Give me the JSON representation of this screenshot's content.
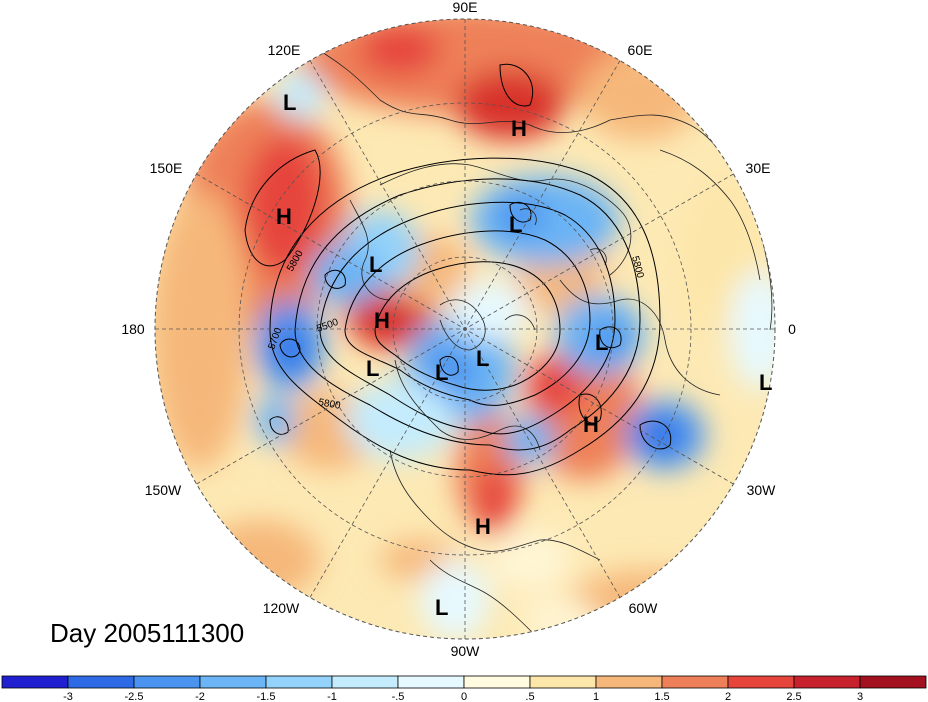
{
  "title": "Day 2005111300",
  "longitude_labels": [
    {
      "text": "90E"
    },
    {
      "text": "60E"
    },
    {
      "text": "30E"
    },
    {
      "text": "0"
    },
    {
      "text": "30W"
    },
    {
      "text": "60W"
    },
    {
      "text": "90W"
    },
    {
      "text": "120W"
    },
    {
      "text": "150W"
    },
    {
      "text": "180"
    },
    {
      "text": "150E"
    },
    {
      "text": "120E"
    }
  ],
  "pressure_systems": [
    {
      "type": "L"
    },
    {
      "type": "H"
    },
    {
      "type": "H"
    },
    {
      "type": "L"
    },
    {
      "type": "L"
    },
    {
      "type": "H"
    },
    {
      "type": "L"
    },
    {
      "type": "L"
    },
    {
      "type": "L"
    },
    {
      "type": "L"
    },
    {
      "type": "L"
    },
    {
      "type": "H"
    },
    {
      "type": "H"
    },
    {
      "type": "L"
    }
  ],
  "contour_labels": [
    "5800",
    "5500",
    "5700",
    "5800",
    "5800"
  ],
  "colorbar": {
    "ticks": [
      "-3",
      "-2.5",
      "-2",
      "-1.5",
      "-1",
      "-.5",
      "0",
      ".5",
      "1",
      "1.5",
      "2",
      "2.5",
      "3"
    ],
    "colors": [
      "#2020d0",
      "#2f6ae6",
      "#4a93ef",
      "#6bb4f5",
      "#93d2fa",
      "#c4ecfd",
      "#e6f9ff",
      "#fffbe0",
      "#fde6a9",
      "#f6b87a",
      "#ee8059",
      "#e6453c",
      "#c8212e",
      "#a3101f"
    ]
  }
}
